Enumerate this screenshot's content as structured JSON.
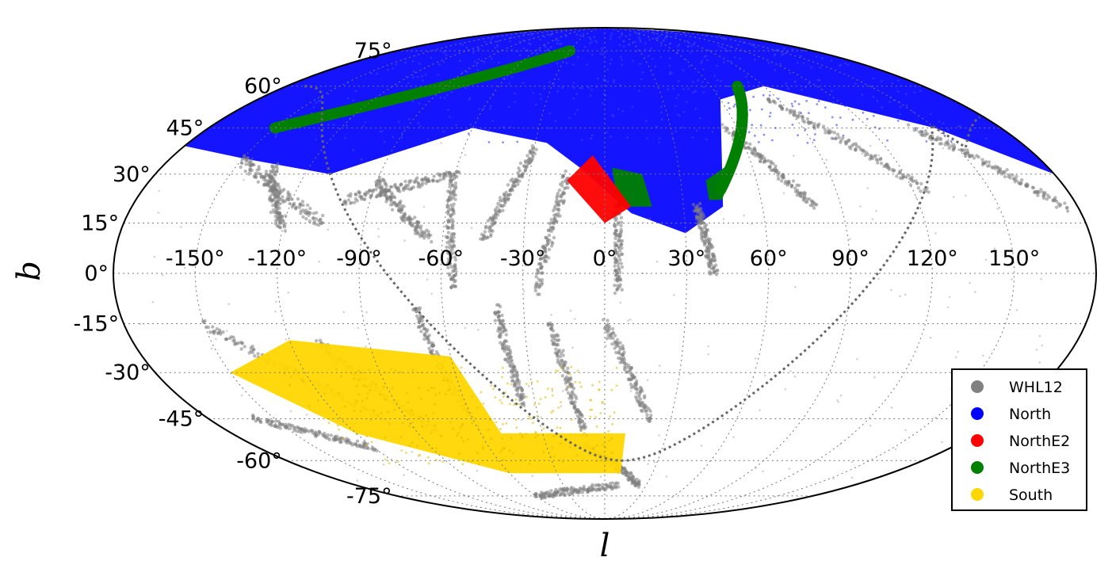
{
  "chart_data": {
    "type": "scatter",
    "projection": "mollweide",
    "title": "",
    "xlabel": "l",
    "ylabel": "b",
    "xlim": [
      -180,
      180
    ],
    "ylim": [
      -90,
      90
    ],
    "grid": true,
    "legend_position": "bottom-right",
    "x_ticks": [
      "-150°",
      "-120°",
      "-90°",
      "-60°",
      "-30°",
      "0°",
      "30°",
      "60°",
      "90°",
      "120°",
      "150°"
    ],
    "x_tick_values": [
      -150,
      -120,
      -90,
      -60,
      -30,
      0,
      30,
      60,
      90,
      120,
      150
    ],
    "y_ticks": [
      "75°",
      "60°",
      "45°",
      "30°",
      "15°",
      "0°",
      "-15°",
      "-30°",
      "-45°",
      "-60°",
      "-75°"
    ],
    "y_tick_values": [
      75,
      60,
      45,
      30,
      15,
      0,
      -15,
      -30,
      -45,
      -60,
      -75
    ],
    "series": [
      {
        "name": "WHL12",
        "color": "#808080",
        "stripes": [
          {
            "l": [
              -150,
              -105
            ],
            "b": [
              35,
              15
            ]
          },
          {
            "l": [
              -135,
              -120
            ],
            "b": [
              32,
              14
            ]
          },
          {
            "l": [
              -100,
              -60
            ],
            "b": [
              22,
              30
            ]
          },
          {
            "l": [
              -90,
              -65
            ],
            "b": [
              28,
              10
            ]
          },
          {
            "l": [
              -60,
              -55
            ],
            "b": [
              30,
              -5
            ]
          },
          {
            "l": [
              -30,
              -45
            ],
            "b": [
              38,
              10
            ]
          },
          {
            "l": [
              -15,
              -25
            ],
            "b": [
              30,
              -5
            ]
          },
          {
            "l": [
              5,
              5
            ],
            "b": [
              25,
              -5
            ]
          },
          {
            "l": [
              35,
              40
            ],
            "b": [
              20,
              0
            ]
          },
          {
            "l": [
              55,
              80
            ],
            "b": [
              45,
              20
            ]
          },
          {
            "l": [
              85,
              125
            ],
            "b": [
              55,
              25
            ]
          },
          {
            "l": [
              140,
              175
            ],
            "b": [
              45,
              20
            ]
          },
          {
            "l": [
              -150,
              -100
            ],
            "b": [
              -15,
              -45
            ]
          },
          {
            "l": [
              -110,
              -80
            ],
            "b": [
              -20,
              -50
            ]
          },
          {
            "l": [
              -70,
              -60
            ],
            "b": [
              -10,
              -45
            ]
          },
          {
            "l": [
              -40,
              -35
            ],
            "b": [
              -10,
              -40
            ]
          },
          {
            "l": [
              -20,
              -10
            ],
            "b": [
              -15,
              -50
            ]
          },
          {
            "l": [
              0,
              20
            ],
            "b": [
              -15,
              -45
            ]
          },
          {
            "l": [
              -10,
              25
            ],
            "b": [
              -55,
              -70
            ]
          },
          {
            "l": [
              -160,
              -120
            ],
            "b": [
              -45,
              -55
            ]
          },
          {
            "l": [
              -60,
              10
            ],
            "b": [
              -75,
              -70
            ]
          }
        ]
      },
      {
        "name": "North",
        "color": "#0000ff",
        "region": {
          "l": [
            -150,
            180
          ],
          "b_bottom": [
            [
              -150,
              35
            ],
            [
              -110,
              30
            ],
            [
              -60,
              45
            ],
            [
              -25,
              40
            ],
            [
              -10,
              32
            ],
            [
              10,
              18
            ],
            [
              30,
              12
            ],
            [
              45,
              20
            ],
            [
              60,
              55
            ],
            [
              90,
              60
            ],
            [
              150,
              45
            ],
            [
              180,
              30
            ]
          ],
          "b_top": 90
        }
      },
      {
        "name": "NorthE2",
        "color": "#ff0000",
        "region": {
          "corners": [
            [
              -15,
              28
            ],
            [
              -5,
              36
            ],
            [
              10,
              20
            ],
            [
              0,
              15
            ]
          ]
        }
      },
      {
        "name": "NorthE3",
        "color": "#008000",
        "regions": [
          {
            "corners": [
              [
                5,
                20
              ],
              [
                3,
                32
              ],
              [
                15,
                30
              ],
              [
                18,
                20
              ]
            ]
          },
          {
            "corners": [
              [
                40,
                22
              ],
              [
                40,
                28
              ],
              [
                55,
                35
              ],
              [
                45,
                22
              ]
            ]
          },
          {
            "band": {
              "l": [
                45,
                75
              ],
              "b": [
                25,
                60
              ]
            }
          },
          {
            "band": {
              "l": [
                -150,
                -30
              ],
              "b": [
                45,
                75
              ]
            }
          }
        ]
      },
      {
        "name": "South",
        "color": "#ffd700",
        "region": {
          "corners": [
            [
              -150,
              -30
            ],
            [
              -120,
              -20
            ],
            [
              -60,
              -25
            ],
            [
              -50,
              -50
            ],
            [
              10,
              -50
            ],
            [
              10,
              -65
            ],
            [
              -60,
              -65
            ],
            [
              -120,
              -50
            ]
          ]
        }
      }
    ]
  }
}
